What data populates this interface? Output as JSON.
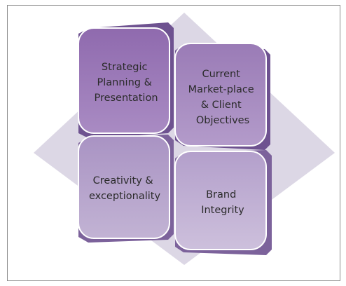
{
  "diagram": {
    "tiles": [
      {
        "id": "top-left",
        "lines": [
          "Strategic",
          "Planning &",
          "Presentation"
        ]
      },
      {
        "id": "top-right",
        "lines": [
          "Current",
          "Market-place",
          "& Client",
          "Objectives"
        ]
      },
      {
        "id": "bottom-left",
        "lines": [
          "Creativity &",
          "exceptionality"
        ]
      },
      {
        "id": "bottom-right",
        "lines": [
          "Brand",
          "Integrity"
        ]
      }
    ],
    "colors": {
      "diamond": "#cfc8dc",
      "tile_top_left": "#9b7ab8",
      "tile_top_right": "#a88cc1",
      "tile_bottom_left": "#b8a6cd",
      "tile_bottom_right": "#c3b3d6",
      "tile_side": "#6c5189",
      "tile_edge": "#ffffff"
    }
  }
}
